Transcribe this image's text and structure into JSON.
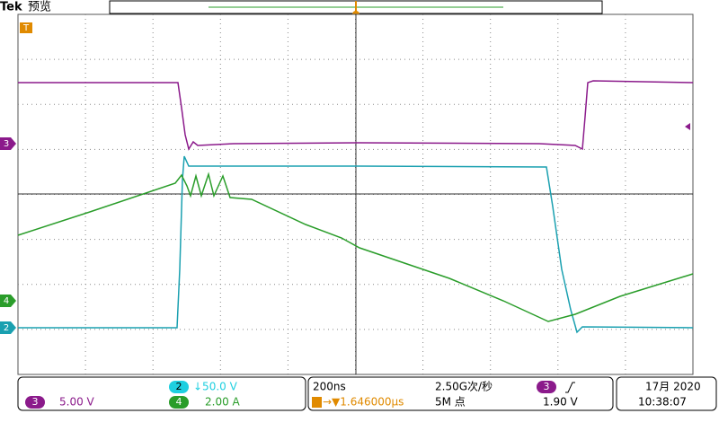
{
  "header": {
    "brand": "Tek",
    "mode": "预览"
  },
  "markers": {
    "trigger": "T",
    "ch3": "3",
    "ch4": "4",
    "ch2": "2"
  },
  "status": {
    "ch2": {
      "label": "2",
      "scale": "↓50.0 V"
    },
    "ch3": {
      "label": "3",
      "scale": "5.00 V"
    },
    "ch4": {
      "label": "4",
      "scale": "2.00 A"
    },
    "timebase": "200ns",
    "sample_rate": "2.50G次/秒",
    "trigger_delay": "→▼1.646000µs",
    "record_length": "5M 点",
    "trigger_source": "3",
    "trigger_level": "1.90 V",
    "date": "17月 2020",
    "time": "10:38:07"
  }
}
